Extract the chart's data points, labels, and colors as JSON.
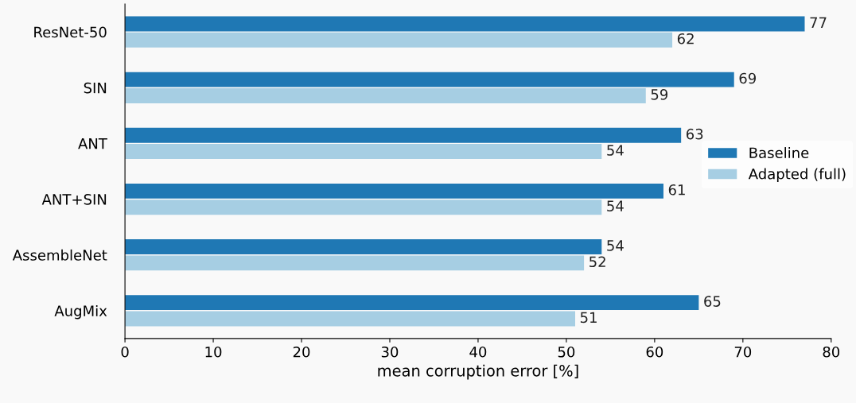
{
  "chart_data": {
    "type": "bar",
    "orientation": "horizontal",
    "xlabel": "mean corruption error [%]",
    "categories": [
      "ResNet-50",
      "SIN",
      "ANT",
      "ANT+SIN",
      "AssembleNet",
      "AugMix"
    ],
    "series": [
      {
        "name": "Baseline",
        "color": "#1f78b4",
        "values": [
          77,
          69,
          63,
          61,
          54,
          65
        ]
      },
      {
        "name": "Adapted (full)",
        "color": "#a6cee3",
        "values": [
          62,
          59,
          54,
          54,
          52,
          51
        ]
      }
    ],
    "xlim": [
      0,
      80
    ],
    "xticks": [
      0,
      10,
      20,
      30,
      40,
      50,
      60,
      70,
      80
    ],
    "data_labels": true,
    "legend": "right",
    "grid": false
  }
}
